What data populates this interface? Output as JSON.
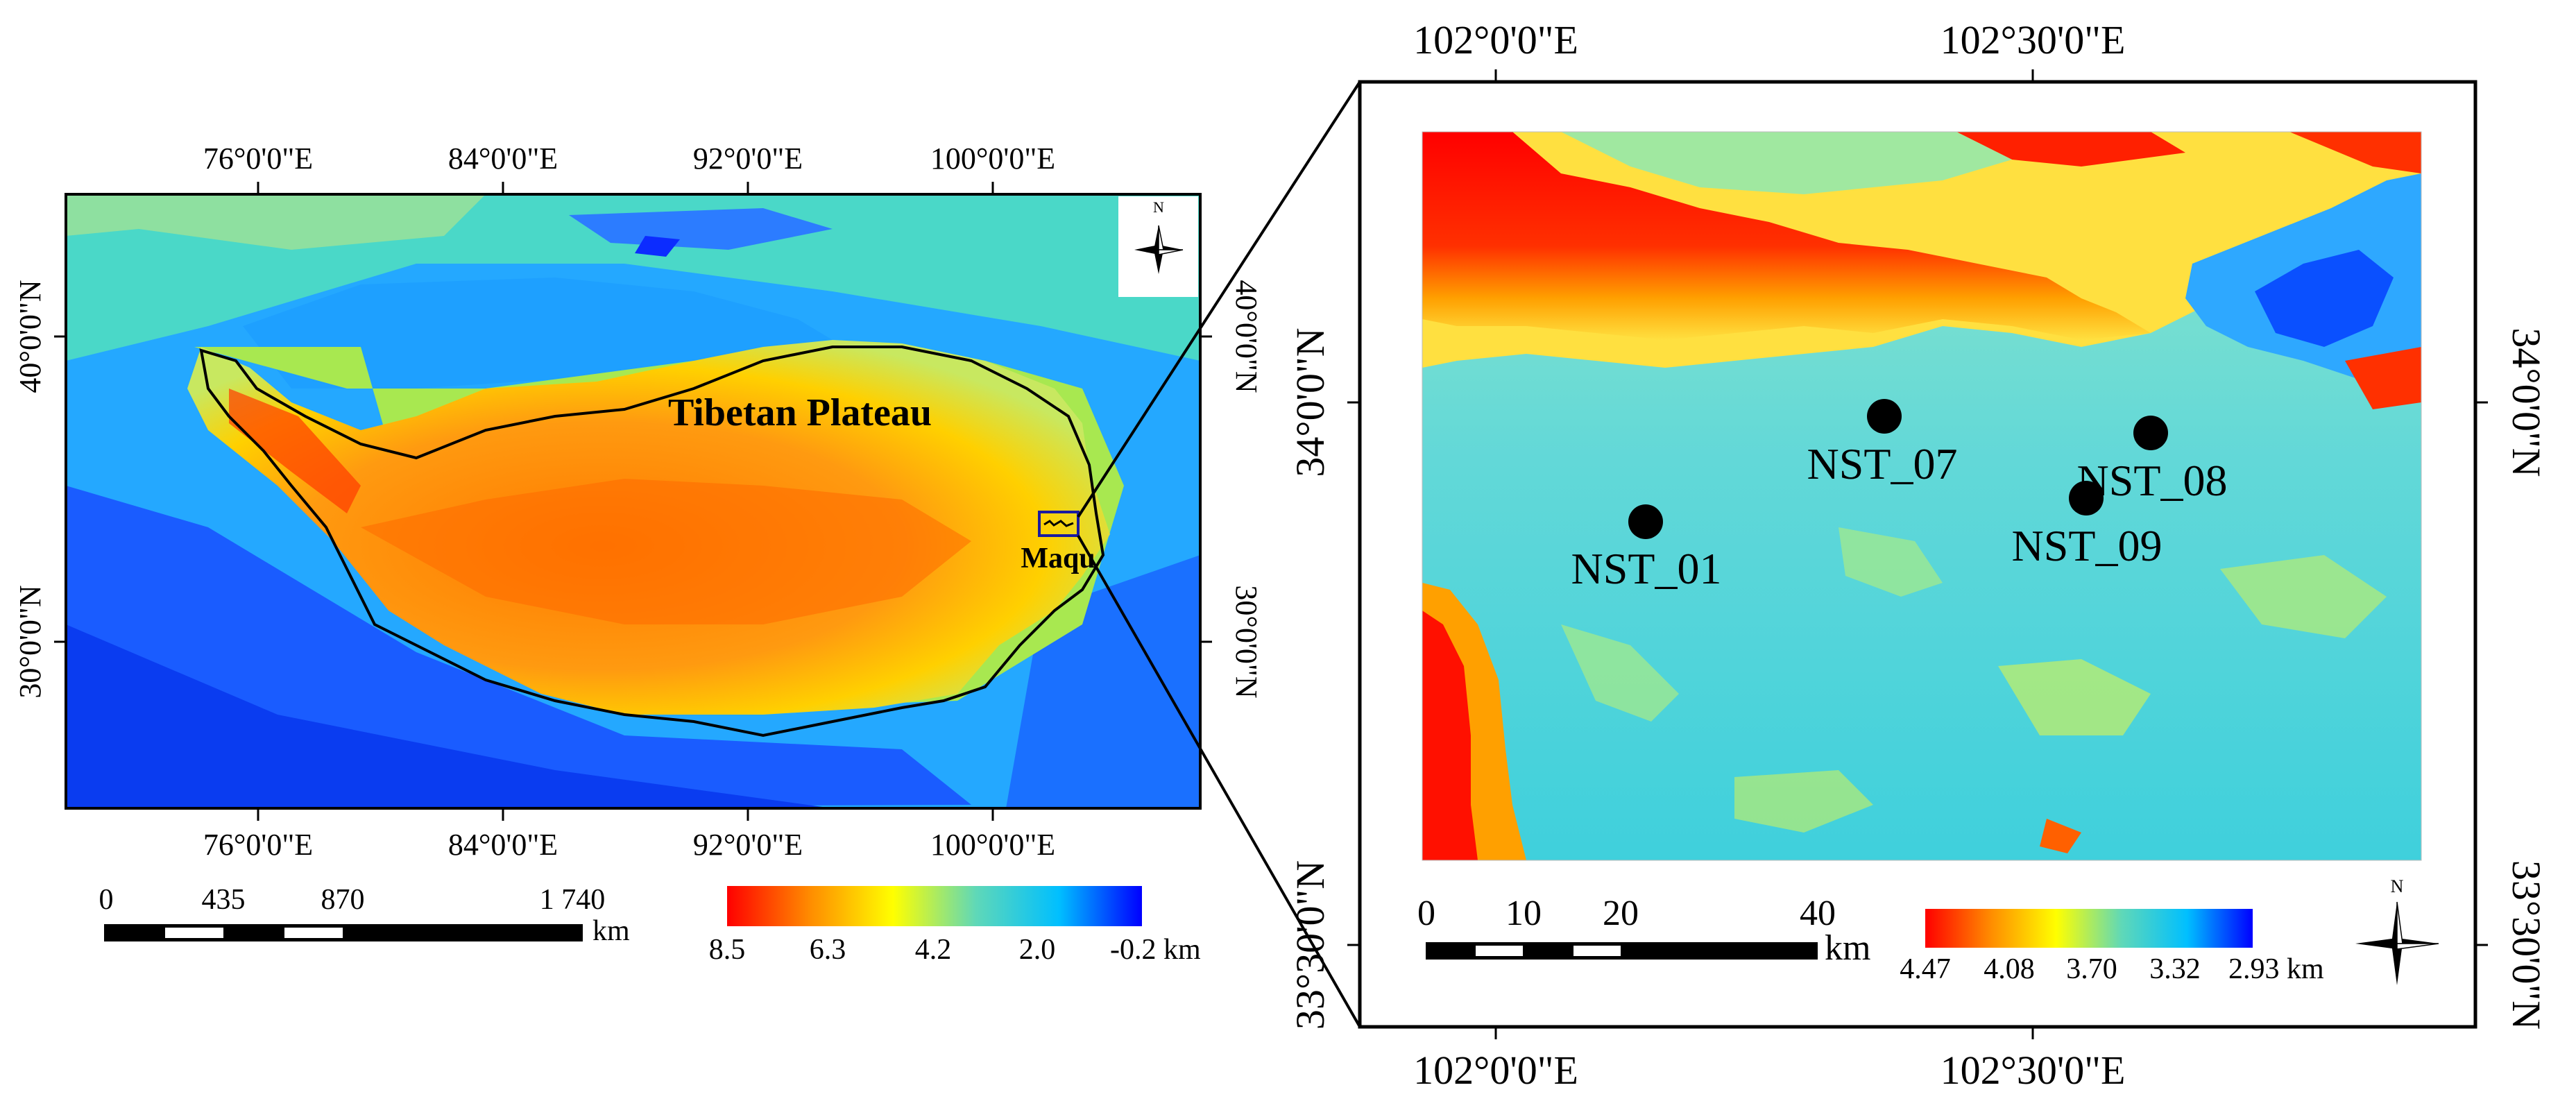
{
  "overview_map": {
    "top_lon_labels": [
      "76°0'0\"E",
      "84°0'0\"E",
      "92°0'0\"E",
      "100°0'0\"E"
    ],
    "bottom_lon_labels": [
      "76°0'0\"E",
      "84°0'0\"E",
      "92°0'0\"E",
      "100°0'0\"E"
    ],
    "left_lat_labels": [
      "40°0'0\"N",
      "30°0'0\"N"
    ],
    "right_lat_labels": [
      "40°0'0\"N",
      "30°0'0\"N"
    ],
    "region_label": "Tibetan Plateau",
    "study_area_label": "Maqu",
    "north_label": "N",
    "scale_bar": {
      "ticks": [
        "0",
        "435",
        "870",
        "1 740"
      ],
      "unit": "km"
    },
    "elevation_legend": {
      "values": [
        "8.5",
        "6.3",
        "4.2",
        "2.0",
        "-0.2 km"
      ],
      "colors": [
        "#ff0000",
        "#ff8c00",
        "#ffff00",
        "#5fd8b8",
        "#00bfff",
        "#0000ff"
      ]
    }
  },
  "detail_map": {
    "top_lon_labels": [
      "102°0'0\"E",
      "102°30'0\"E"
    ],
    "bottom_lon_labels": [
      "102°0'0\"E",
      "102°30'0\"E"
    ],
    "left_lat_labels": [
      "34°0'0\"N",
      "33°30'0\"N"
    ],
    "right_lat_labels": [
      "34°0'0\"N",
      "33°30'0\"N"
    ],
    "stations": [
      {
        "id": "NST_01",
        "label": "NST_01"
      },
      {
        "id": "NST_07",
        "label": "NST_07"
      },
      {
        "id": "NST_08",
        "label": "NST_08"
      },
      {
        "id": "NST_09",
        "label": "NST_09"
      }
    ],
    "north_label": "N",
    "scale_bar": {
      "ticks": [
        "0",
        "10",
        "20",
        "40"
      ],
      "unit": "km"
    },
    "elevation_legend": {
      "values": [
        "4.47",
        "4.08",
        "3.70",
        "3.32",
        "2.93 km"
      ],
      "colors": [
        "#ff0000",
        "#ff8c00",
        "#ffff00",
        "#5fd8b8",
        "#00bfff",
        "#0000ff"
      ]
    }
  }
}
